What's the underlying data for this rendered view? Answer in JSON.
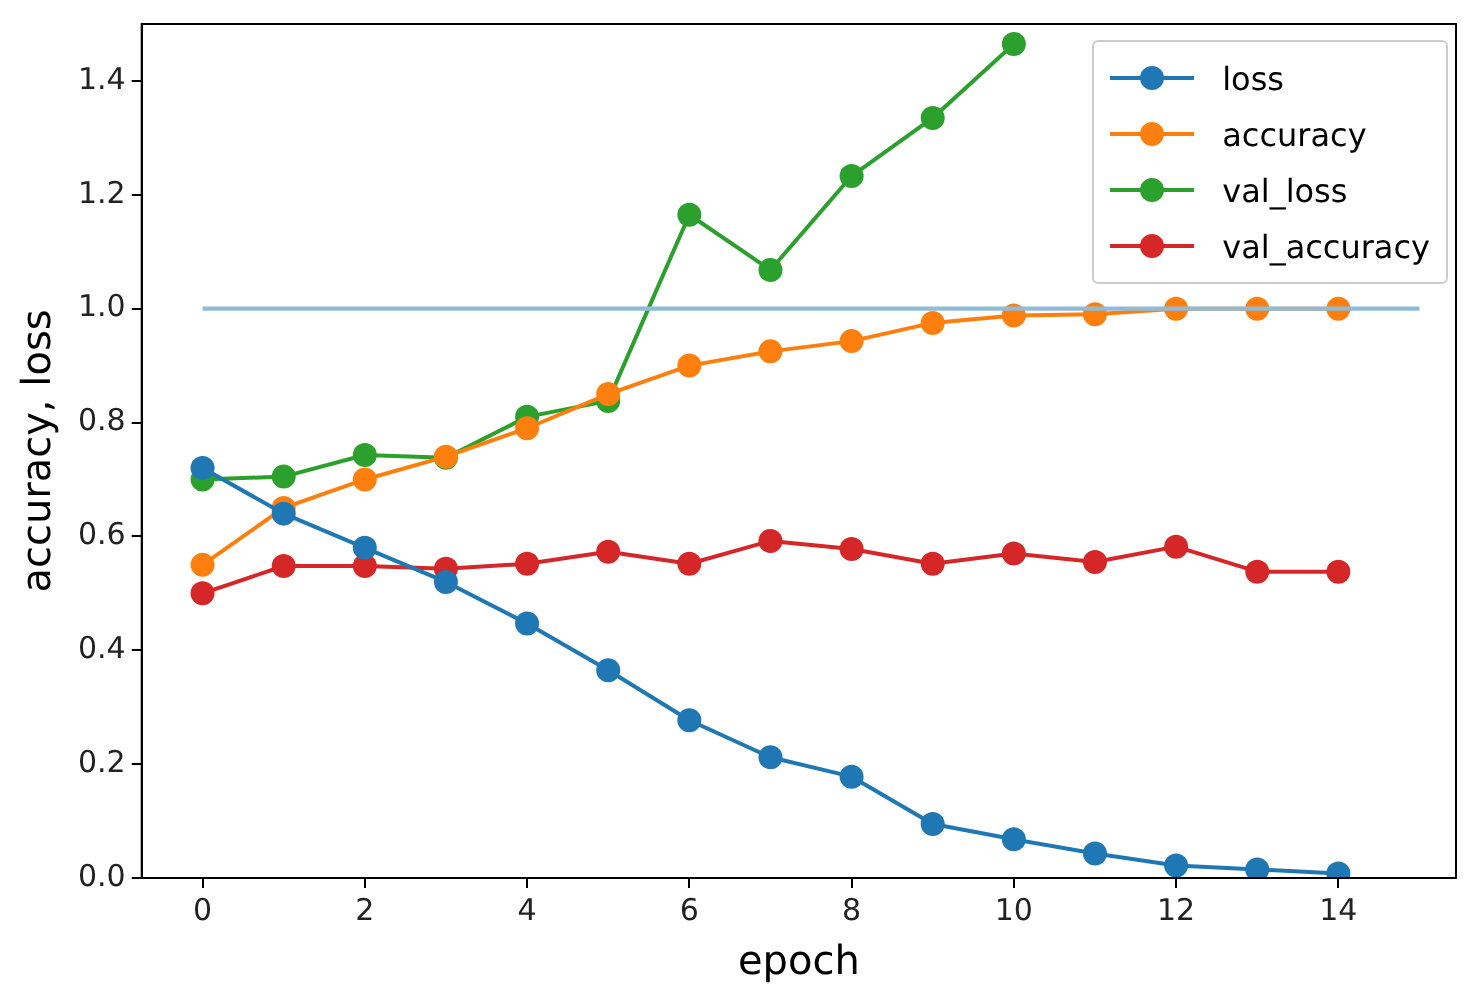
{
  "chart_data": {
    "type": "line",
    "xlabel": "epoch",
    "ylabel": "accuracy, loss",
    "x": [
      0,
      1,
      2,
      3,
      4,
      5,
      6,
      7,
      8,
      9,
      10,
      11,
      12,
      13,
      14
    ],
    "xlim": [
      -0.75,
      15.45
    ],
    "xticks": [
      0,
      2,
      4,
      6,
      8,
      10,
      12,
      14
    ],
    "ylim": [
      0,
      1.5
    ],
    "yticks": [
      {
        "value": 0,
        "label": "0.0"
      },
      0.2,
      0.4,
      0.6,
      0.8,
      {
        "value": 1,
        "label": "1.0"
      },
      1.2,
      1.4
    ],
    "grid": false,
    "legend": "top right",
    "marker": "circle",
    "line_style": "solid",
    "series": [
      {
        "x": [
          0,
          15
        ],
        "values": [
          1.0,
          1.0
        ],
        "color": "#8fbbd9",
        "marker": "none"
      },
      {
        "name": "loss",
        "color": "#1f77b4",
        "values": [
          0.72,
          0.64,
          0.58,
          0.52,
          0.447,
          0.365,
          0.277,
          0.212,
          0.178,
          0.095,
          0.068,
          0.043,
          0.022,
          0.015,
          0.008
        ]
      },
      {
        "name": "accuracy",
        "color": "#ff7f0e",
        "values": [
          0.55,
          0.65,
          0.7,
          0.74,
          0.79,
          0.85,
          0.9,
          0.925,
          0.943,
          0.975,
          0.988,
          0.99,
          1.0,
          1.0,
          1.0
        ]
      },
      {
        "name": "val_loss",
        "color": "#2ca02c",
        "values": [
          0.7,
          0.705,
          0.743,
          0.738,
          0.81,
          0.838,
          1.165,
          1.068,
          1.233,
          1.335,
          1.465,
          null,
          null,
          null,
          null
        ]
      },
      {
        "name": "val_accuracy",
        "color": "#d62728",
        "values": [
          0.5,
          0.548,
          0.548,
          0.543,
          0.552,
          0.573,
          0.552,
          0.592,
          0.578,
          0.552,
          0.57,
          0.555,
          0.582,
          0.538,
          0.538
        ]
      }
    ]
  }
}
